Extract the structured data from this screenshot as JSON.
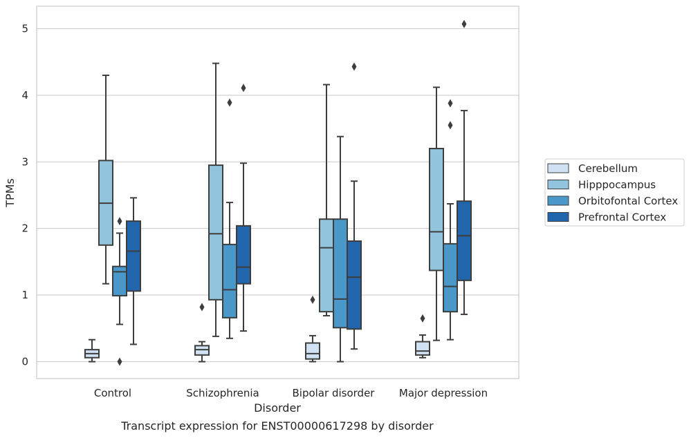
{
  "chart_data": {
    "type": "box",
    "title": "",
    "caption": "Transcript expression for ENST00000617298 by disorder",
    "xlabel": "Disorder",
    "ylabel": "TPMs",
    "ylim": [
      -0.25,
      5.33
    ],
    "yticks": [
      0,
      1,
      2,
      3,
      4,
      5
    ],
    "grid": "y",
    "legend_position": "right",
    "categories": [
      "Control",
      "Schizophrenia",
      "Bipolar disorder",
      "Major depression"
    ],
    "series": [
      {
        "name": "Cerebellum",
        "color": "#cfe1f2",
        "boxes": [
          {
            "whislo": 0.0,
            "q1": 0.06,
            "med": 0.12,
            "q3": 0.18,
            "whishi": 0.33,
            "fliers": []
          },
          {
            "whislo": 0.0,
            "q1": 0.1,
            "med": 0.18,
            "q3": 0.24,
            "whishi": 0.3,
            "fliers": [
              0.82
            ]
          },
          {
            "whislo": 0.0,
            "q1": 0.04,
            "med": 0.12,
            "q3": 0.28,
            "whishi": 0.39,
            "fliers": [
              0.93
            ]
          },
          {
            "whislo": 0.06,
            "q1": 0.1,
            "med": 0.16,
            "q3": 0.3,
            "whishi": 0.4,
            "fliers": [
              0.65
            ]
          }
        ]
      },
      {
        "name": "Hipppocampus",
        "color": "#93c4de",
        "boxes": [
          {
            "whislo": 1.17,
            "q1": 1.75,
            "med": 2.38,
            "q3": 3.02,
            "whishi": 4.3,
            "fliers": []
          },
          {
            "whislo": 0.38,
            "q1": 0.93,
            "med": 1.92,
            "q3": 2.95,
            "whishi": 4.48,
            "fliers": []
          },
          {
            "whislo": 0.69,
            "q1": 0.75,
            "med": 1.71,
            "q3": 2.14,
            "whishi": 4.16,
            "fliers": []
          },
          {
            "whislo": 0.32,
            "q1": 1.37,
            "med": 1.95,
            "q3": 3.2,
            "whishi": 4.12,
            "fliers": []
          }
        ]
      },
      {
        "name": "Orbitofontal Cortex",
        "color": "#4a98c9",
        "boxes": [
          {
            "whislo": 0.56,
            "q1": 0.99,
            "med": 1.35,
            "q3": 1.43,
            "whishi": 1.93,
            "fliers": [
              2.11,
              0.0
            ]
          },
          {
            "whislo": 0.35,
            "q1": 0.66,
            "med": 1.08,
            "q3": 1.76,
            "whishi": 2.39,
            "fliers": [
              3.89
            ]
          },
          {
            "whislo": 0.0,
            "q1": 0.51,
            "med": 0.94,
            "q3": 2.14,
            "whishi": 3.38,
            "fliers": []
          },
          {
            "whislo": 0.33,
            "q1": 0.75,
            "med": 1.13,
            "q3": 1.77,
            "whishi": 2.37,
            "fliers": [
              3.88,
              3.55
            ]
          }
        ]
      },
      {
        "name": "Prefrontal Cortex",
        "color": "#2166ac",
        "boxes": [
          {
            "whislo": 0.26,
            "q1": 1.06,
            "med": 1.66,
            "q3": 2.11,
            "whishi": 2.46,
            "fliers": []
          },
          {
            "whislo": 0.46,
            "q1": 1.17,
            "med": 1.42,
            "q3": 2.04,
            "whishi": 2.98,
            "fliers": [
              4.11
            ]
          },
          {
            "whislo": 0.19,
            "q1": 0.49,
            "med": 1.27,
            "q3": 1.81,
            "whishi": 2.71,
            "fliers": [
              4.43
            ]
          },
          {
            "whislo": 0.71,
            "q1": 1.22,
            "med": 1.89,
            "q3": 2.41,
            "whishi": 3.77,
            "fliers": [
              5.07
            ]
          }
        ]
      }
    ]
  }
}
